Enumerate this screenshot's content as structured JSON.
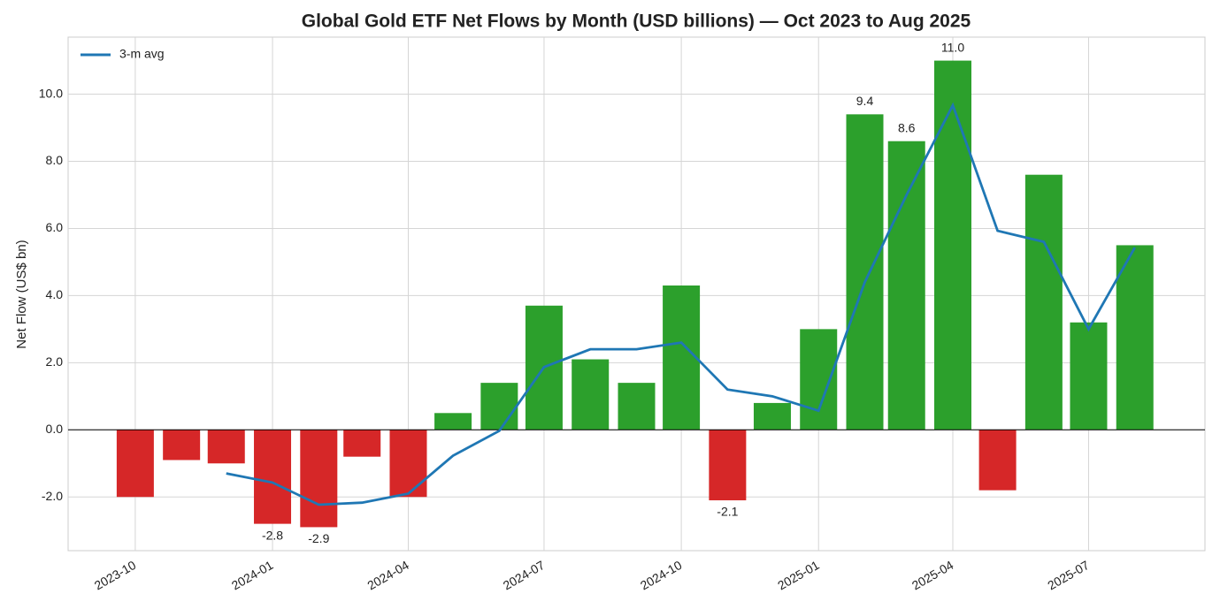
{
  "chart_data": {
    "type": "bar",
    "title": "Global Gold ETF Net Flows by Month (USD billions) — Oct 2023 to Aug 2025",
    "y_label": "Net Flow (US$ bn)",
    "x": [
      "2023-10-01",
      "2023-11-01",
      "2023-12-01",
      "2024-01-01",
      "2024-02-01",
      "2024-03-01",
      "2024-04-01",
      "2024-05-01",
      "2024-06-01",
      "2024-07-01",
      "2024-08-01",
      "2024-09-01",
      "2024-10-01",
      "2024-11-01",
      "2024-12-01",
      "2025-01-01",
      "2025-02-01",
      "2025-03-01",
      "2025-04-01",
      "2025-05-01",
      "2025-06-01",
      "2025-07-01",
      "2025-08-01"
    ],
    "values": [
      -2.0,
      -0.9,
      -1.0,
      -2.8,
      -2.9,
      -0.8,
      -2.0,
      0.5,
      1.4,
      3.7,
      2.1,
      1.4,
      4.3,
      -2.1,
      0.8,
      3.0,
      9.4,
      8.6,
      11.0,
      -1.8,
      7.6,
      3.2,
      5.5
    ],
    "value_labels": [
      null,
      null,
      null,
      "-2.8",
      "-2.9",
      null,
      null,
      null,
      null,
      null,
      null,
      null,
      null,
      "-2.1",
      null,
      null,
      "9.4",
      "8.6",
      "11.0",
      null,
      null,
      null,
      null
    ],
    "positive_color": "#2ca02c",
    "negative_color": "#d62728",
    "line": {
      "name": "3-m avg",
      "color": "#1f77b4",
      "values": [
        null,
        null,
        -1.3,
        -1.57,
        -2.23,
        -2.17,
        -1.9,
        -0.77,
        -0.03,
        1.87,
        2.4,
        2.4,
        2.6,
        1.2,
        1.0,
        0.57,
        4.4,
        7.0,
        9.67,
        5.93,
        5.6,
        3.0,
        5.43
      ]
    },
    "xlim": [
      "2023-08-17",
      "2025-09-17"
    ],
    "xticks": [
      {
        "value": "2023-10-01",
        "label": "2023-10"
      },
      {
        "value": "2024-01-01",
        "label": "2024-01"
      },
      {
        "value": "2024-04-01",
        "label": "2024-04"
      },
      {
        "value": "2024-07-01",
        "label": "2024-07"
      },
      {
        "value": "2024-10-01",
        "label": "2024-10"
      },
      {
        "value": "2025-01-01",
        "label": "2025-01"
      },
      {
        "value": "2025-04-01",
        "label": "2025-04"
      },
      {
        "value": "2025-07-01",
        "label": "2025-07"
      }
    ],
    "ylim": [
      -3.6,
      11.7
    ],
    "yticks": [
      {
        "value": -2,
        "label": "-2.0"
      },
      {
        "value": 0,
        "label": "0.0"
      },
      {
        "value": 2,
        "label": "2.0"
      },
      {
        "value": 4,
        "label": "4.0"
      },
      {
        "value": 6,
        "label": "6.0"
      },
      {
        "value": 8,
        "label": "8.0"
      },
      {
        "value": 10,
        "label": "10.0"
      }
    ],
    "grid": true,
    "legend_position": "upper-left"
  }
}
